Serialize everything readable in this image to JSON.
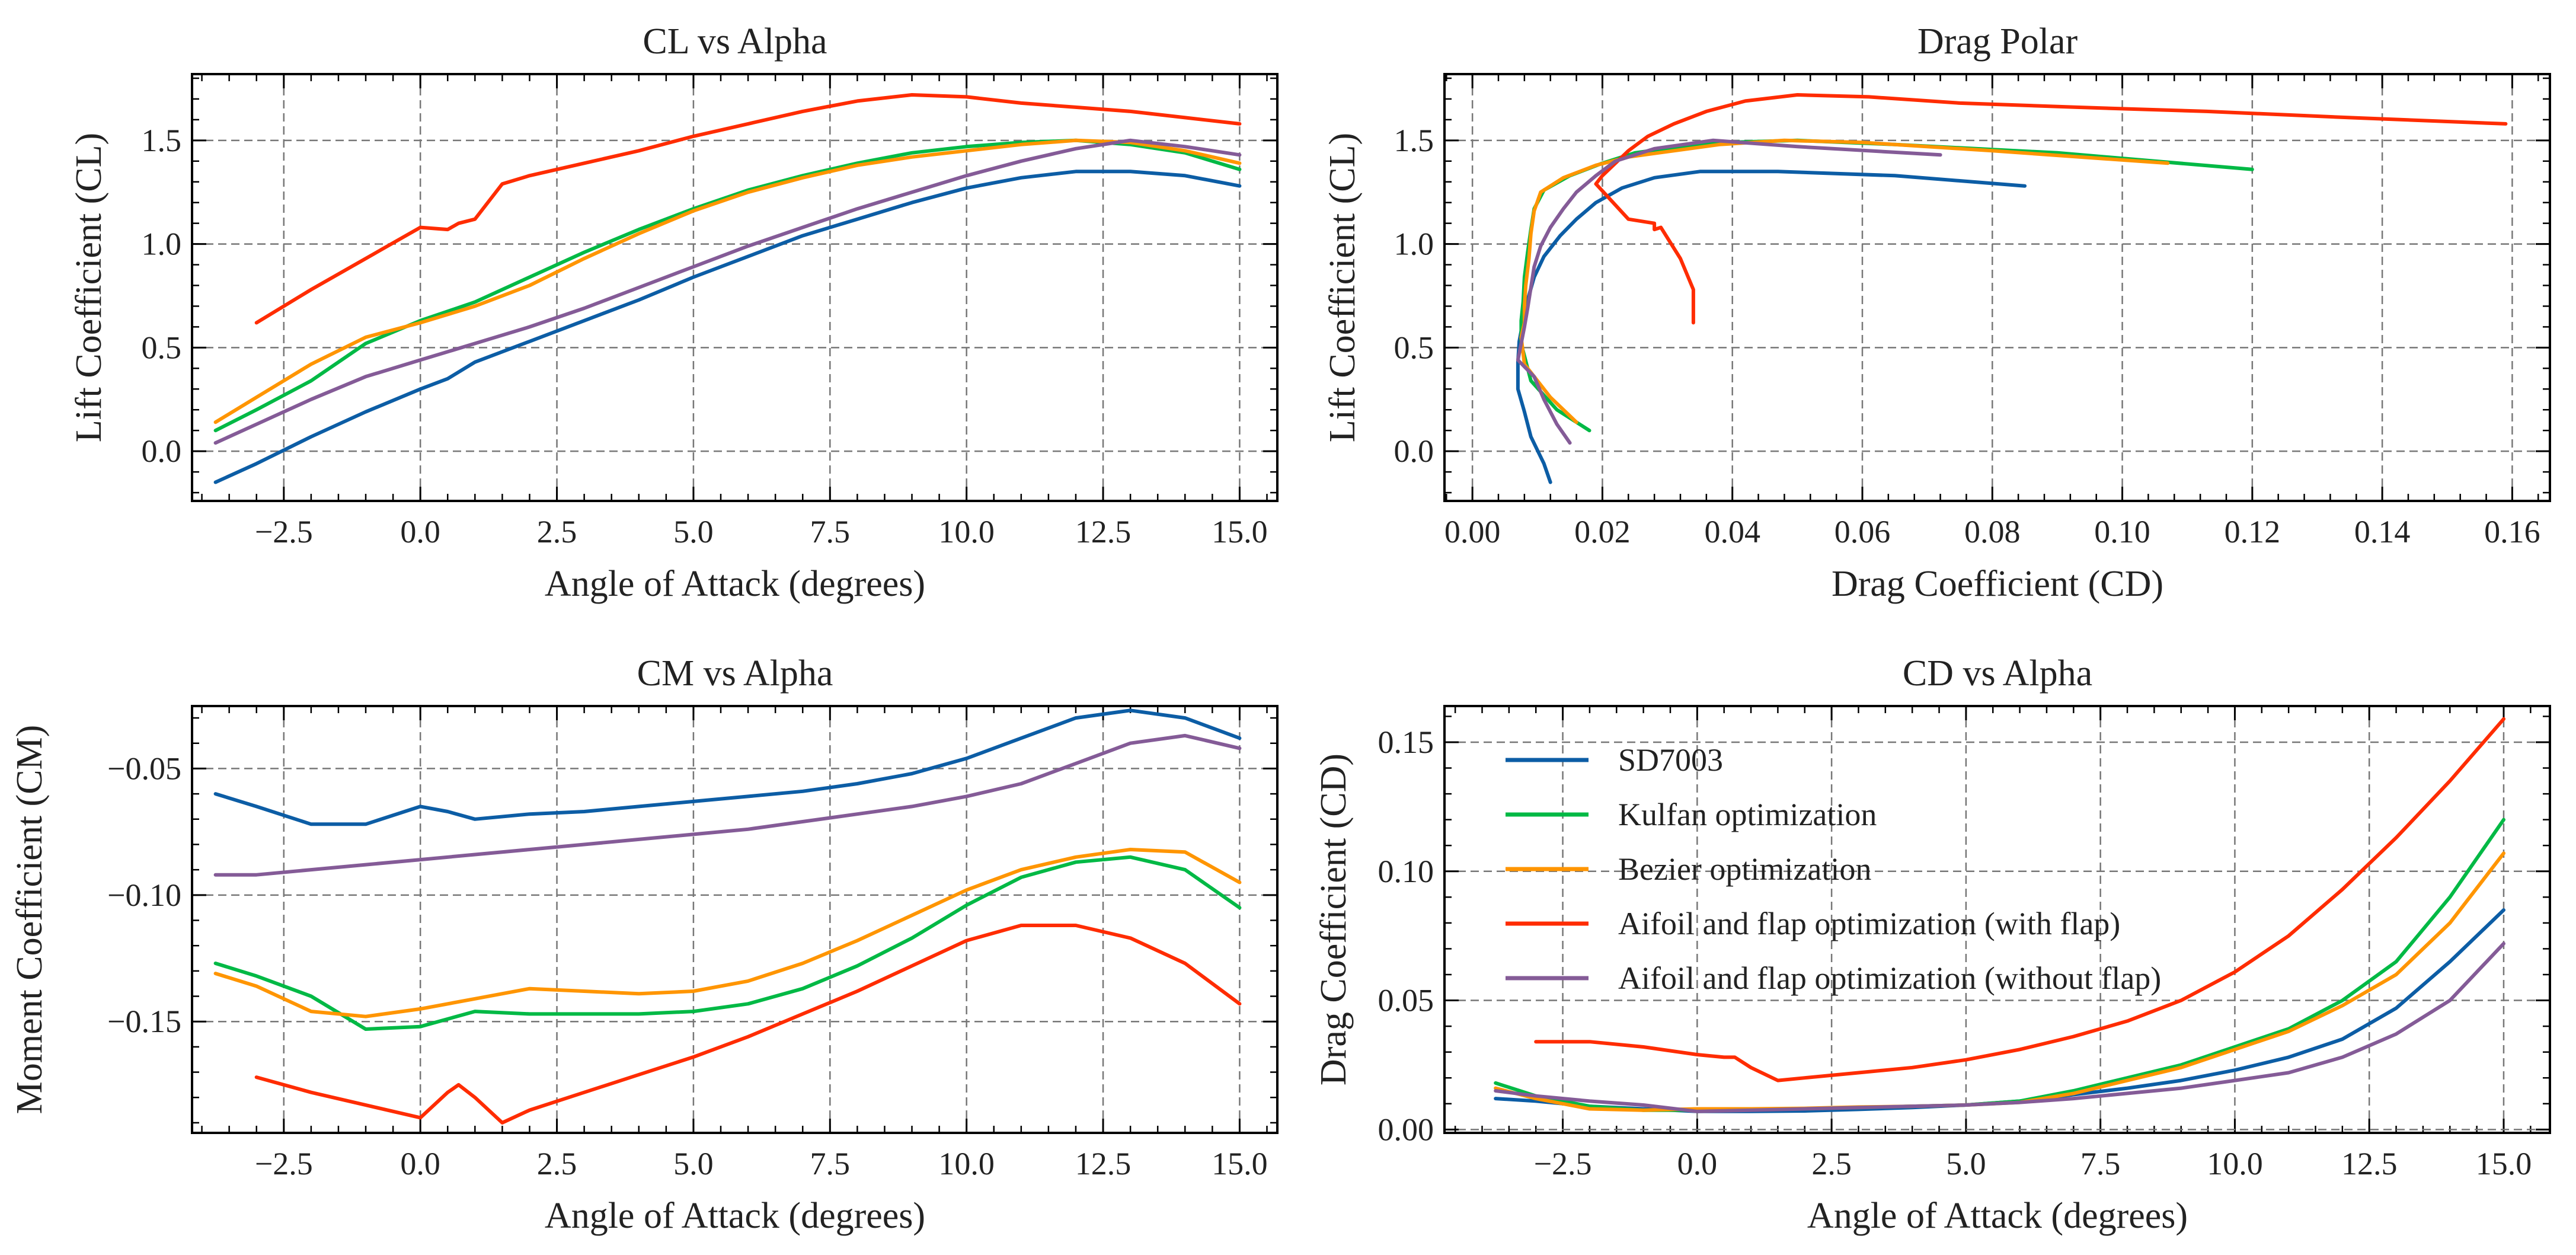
{
  "chart_data": {
    "type": "line",
    "panels": [
      {
        "id": "cl",
        "title": "CL vs Alpha",
        "xlabel": "Angle of Attack (degrees)",
        "ylabel": "Lift Coefficient (CL)",
        "x": "alpha",
        "y": "cl",
        "xlim": [
          -4.18,
          15.69
        ],
        "ylim": [
          -0.24,
          1.82
        ],
        "xticks": [
          -2.5,
          0,
          2.5,
          5,
          7.5,
          10,
          12.5,
          15
        ],
        "xtick_labels": [
          "−2.5",
          "0.0",
          "2.5",
          "5.0",
          "7.5",
          "10.0",
          "12.5",
          "15.0"
        ],
        "yticks": [
          0,
          0.5,
          1,
          1.5
        ],
        "ytick_labels": [
          "0.0",
          "0.5",
          "1.0",
          "1.5"
        ],
        "grid": true,
        "legend": false
      },
      {
        "id": "polar",
        "title": "Drag Polar",
        "xlabel": "Drag Coefficient (CD)",
        "ylabel": "Lift Coefficient (CL)",
        "x": "cd",
        "y": "cl",
        "xlim": [
          -0.0043,
          0.1658
        ],
        "ylim": [
          -0.24,
          1.82
        ],
        "xticks": [
          0,
          0.02,
          0.04,
          0.06,
          0.08,
          0.1,
          0.12,
          0.14,
          0.16
        ],
        "xtick_labels": [
          "0.00",
          "0.02",
          "0.04",
          "0.06",
          "0.08",
          "0.10",
          "0.12",
          "0.14",
          "0.16"
        ],
        "yticks": [
          0,
          0.5,
          1,
          1.5
        ],
        "ytick_labels": [
          "0.0",
          "0.5",
          "1.0",
          "1.5"
        ],
        "grid": true,
        "legend": false
      },
      {
        "id": "cm",
        "title": "CM vs Alpha",
        "xlabel": "Angle of Attack (degrees)",
        "ylabel": "Moment Coefficient (CM)",
        "x": "alpha",
        "y": "cm",
        "xlim": [
          -4.18,
          15.69
        ],
        "ylim": [
          -0.194,
          -0.0253
        ],
        "xticks": [
          -2.5,
          0,
          2.5,
          5,
          7.5,
          10,
          12.5,
          15
        ],
        "xtick_labels": [
          "−2.5",
          "0.0",
          "2.5",
          "5.0",
          "7.5",
          "10.0",
          "12.5",
          "15.0"
        ],
        "yticks": [
          -0.15,
          -0.1,
          -0.05
        ],
        "ytick_labels": [
          "−0.15",
          "−0.10",
          "−0.05"
        ],
        "grid": true,
        "legend": false
      },
      {
        "id": "cd",
        "title": "CD vs Alpha",
        "xlabel": "Angle of Attack (degrees)",
        "ylabel": "Drag Coefficient (CD)",
        "x": "alpha",
        "y": "cd",
        "xlim": [
          -4.7,
          15.86
        ],
        "ylim": [
          -0.0013,
          0.164
        ],
        "xticks": [
          -2.5,
          0,
          2.5,
          5,
          7.5,
          10,
          12.5,
          15
        ],
        "xtick_labels": [
          "−2.5",
          "0.0",
          "2.5",
          "5.0",
          "7.5",
          "10.0",
          "12.5",
          "15.0"
        ],
        "yticks": [
          0,
          0.05,
          0.1,
          0.15
        ],
        "ytick_labels": [
          "0.00",
          "0.05",
          "0.10",
          "0.15"
        ],
        "grid": true,
        "legend": "upper-left"
      }
    ],
    "series": [
      {
        "name": "SD7003",
        "color": "#0C5DA5",
        "alpha": [
          -3.75,
          -3,
          -2,
          -1,
          0,
          0.5,
          1,
          2,
          3,
          4,
          5,
          6,
          7,
          8,
          9,
          10,
          11,
          12,
          13,
          14,
          15
        ],
        "cl": [
          -0.15,
          -0.06,
          0.07,
          0.19,
          0.3,
          0.35,
          0.43,
          0.53,
          0.63,
          0.73,
          0.84,
          0.94,
          1.04,
          1.12,
          1.2,
          1.27,
          1.32,
          1.35,
          1.35,
          1.33,
          1.28
        ],
        "cm": [
          -0.06,
          -0.065,
          -0.072,
          -0.072,
          -0.065,
          -0.067,
          -0.07,
          -0.068,
          -0.067,
          -0.065,
          -0.063,
          -0.061,
          -0.059,
          -0.056,
          -0.052,
          -0.046,
          -0.038,
          -0.03,
          -0.027,
          -0.03,
          -0.038
        ],
        "cd": [
          0.012,
          0.011,
          0.009,
          0.008,
          0.007,
          0.007,
          0.007,
          0.0072,
          0.0078,
          0.0085,
          0.0095,
          0.011,
          0.0135,
          0.016,
          0.019,
          0.023,
          0.028,
          0.035,
          0.047,
          0.065,
          0.085
        ]
      },
      {
        "name": "Kulfan optimization",
        "color": "#00B945",
        "alpha": [
          -3.75,
          -3,
          -2,
          -1,
          0,
          1,
          2,
          3,
          4,
          5,
          6,
          7,
          8,
          9,
          10,
          11,
          12,
          13,
          14,
          15
        ],
        "cl": [
          0.1,
          0.2,
          0.34,
          0.52,
          0.63,
          0.72,
          0.84,
          0.96,
          1.07,
          1.17,
          1.26,
          1.33,
          1.39,
          1.44,
          1.47,
          1.49,
          1.5,
          1.48,
          1.44,
          1.36
        ],
        "cm": [
          -0.127,
          -0.132,
          -0.14,
          -0.153,
          -0.152,
          -0.146,
          -0.147,
          -0.147,
          -0.147,
          -0.146,
          -0.143,
          -0.137,
          -0.128,
          -0.117,
          -0.104,
          -0.093,
          -0.087,
          -0.085,
          -0.09,
          -0.105
        ],
        "cd": [
          0.018,
          0.013,
          0.009,
          0.0075,
          0.0075,
          0.0078,
          0.008,
          0.0085,
          0.009,
          0.0095,
          0.011,
          0.015,
          0.02,
          0.025,
          0.032,
          0.039,
          0.05,
          0.065,
          0.09,
          0.12
        ]
      },
      {
        "name": "Bezier optimization",
        "color": "#FF9500",
        "alpha": [
          -3.75,
          -3,
          -2,
          -1,
          0,
          1,
          2,
          3,
          4,
          5,
          6,
          7,
          8,
          9,
          10,
          11,
          12,
          13,
          14,
          15
        ],
        "cl": [
          0.14,
          0.26,
          0.42,
          0.55,
          0.62,
          0.7,
          0.8,
          0.93,
          1.05,
          1.16,
          1.25,
          1.32,
          1.38,
          1.42,
          1.45,
          1.48,
          1.5,
          1.49,
          1.45,
          1.39
        ],
        "cm": [
          -0.131,
          -0.136,
          -0.146,
          -0.148,
          -0.145,
          -0.141,
          -0.137,
          -0.138,
          -0.139,
          -0.138,
          -0.134,
          -0.127,
          -0.118,
          -0.108,
          -0.098,
          -0.09,
          -0.085,
          -0.082,
          -0.083,
          -0.095
        ],
        "cd": [
          0.016,
          0.012,
          0.008,
          0.0075,
          0.008,
          0.008,
          0.0082,
          0.0087,
          0.009,
          0.0095,
          0.0105,
          0.014,
          0.019,
          0.024,
          0.031,
          0.038,
          0.048,
          0.06,
          0.08,
          0.107
        ]
      },
      {
        "name": "Aifoil and flap optimization (with flap)",
        "color": "#FF2C00",
        "alpha": [
          -3,
          -2,
          -1,
          0,
          0.5,
          0.7,
          1,
          1.5,
          2,
          3,
          4,
          5,
          6,
          7,
          8,
          9,
          10,
          11,
          12,
          13,
          14,
          15
        ],
        "cl": [
          0.62,
          0.78,
          0.93,
          1.08,
          1.07,
          1.1,
          1.12,
          1.29,
          1.33,
          1.39,
          1.45,
          1.52,
          1.58,
          1.64,
          1.69,
          1.72,
          1.71,
          1.68,
          1.66,
          1.64,
          1.61,
          1.58
        ],
        "cm": [
          -0.172,
          -0.178,
          -0.183,
          -0.188,
          -0.178,
          -0.175,
          -0.18,
          -0.19,
          -0.185,
          -0.178,
          -0.171,
          -0.164,
          -0.156,
          -0.147,
          -0.138,
          -0.128,
          -0.118,
          -0.112,
          -0.112,
          -0.117,
          -0.127,
          -0.143
        ],
        "cd": [
          0.034,
          0.034,
          0.032,
          0.029,
          0.028,
          0.028,
          0.024,
          0.019,
          0.02,
          0.022,
          0.024,
          0.027,
          0.031,
          0.036,
          0.042,
          0.05,
          0.061,
          0.075,
          0.093,
          0.113,
          0.135,
          0.159
        ]
      },
      {
        "name": "Aifoil and flap optimization (without flap)",
        "color": "#845B97",
        "alpha": [
          -3.75,
          -3,
          -2,
          -1,
          0,
          1,
          2,
          3,
          4,
          5,
          6,
          7,
          8,
          9,
          10,
          11,
          12,
          13,
          14,
          15
        ],
        "cl": [
          0.04,
          0.13,
          0.25,
          0.36,
          0.44,
          0.52,
          0.6,
          0.69,
          0.79,
          0.89,
          0.99,
          1.08,
          1.17,
          1.25,
          1.33,
          1.4,
          1.46,
          1.5,
          1.47,
          1.43
        ],
        "cm": [
          -0.092,
          -0.092,
          -0.09,
          -0.088,
          -0.086,
          -0.084,
          -0.082,
          -0.08,
          -0.078,
          -0.076,
          -0.074,
          -0.071,
          -0.068,
          -0.065,
          -0.061,
          -0.056,
          -0.048,
          -0.04,
          -0.037,
          -0.042
        ],
        "cd": [
          0.015,
          0.013,
          0.011,
          0.0095,
          0.007,
          0.0075,
          0.008,
          0.0085,
          0.009,
          0.0095,
          0.0105,
          0.012,
          0.014,
          0.016,
          0.019,
          0.022,
          0.028,
          0.037,
          0.05,
          0.072
        ]
      }
    ]
  }
}
